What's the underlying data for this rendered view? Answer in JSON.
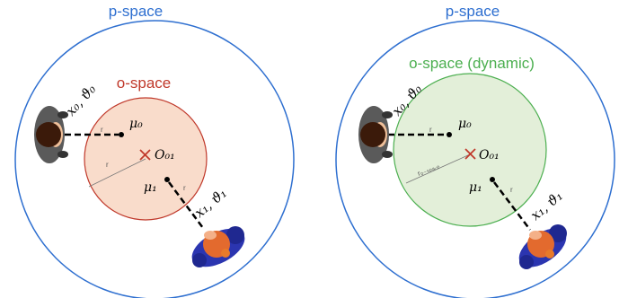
{
  "colors": {
    "p_space": "#2e6fd0",
    "o_space_left": "#c0392b",
    "o_space_left_fill": "#f9dccb",
    "o_space_right": "#4caf50",
    "o_space_right_fill": "#e3efd9",
    "center_cross": "#c0392b",
    "person0_hair": "#3b1a0a",
    "person0_body": "#555555",
    "person1_head": "#e36a2e",
    "person1_body": "#2b35b0"
  },
  "left_panel": {
    "p_space_label": "p-space",
    "o_space_label": "o-space",
    "mu0": "μ₀",
    "mu1": "μ₁",
    "center": "O₀₁",
    "pose0": "x₀, ϑ₀",
    "pose1": "x₁, ϑ₁",
    "r_label": "r"
  },
  "right_panel": {
    "p_space_label": "p-space",
    "o_space_label": "o-space (dynamic)",
    "mu0": "μ₀",
    "mu1": "μ₁",
    "center": "O₀₁",
    "pose0": "x₀, ϑ₀",
    "pose1": "x₁, ϑ₁",
    "r_label": "r",
    "radius_label": "r₀₋ₛₚₐ꜀ₑ"
  }
}
